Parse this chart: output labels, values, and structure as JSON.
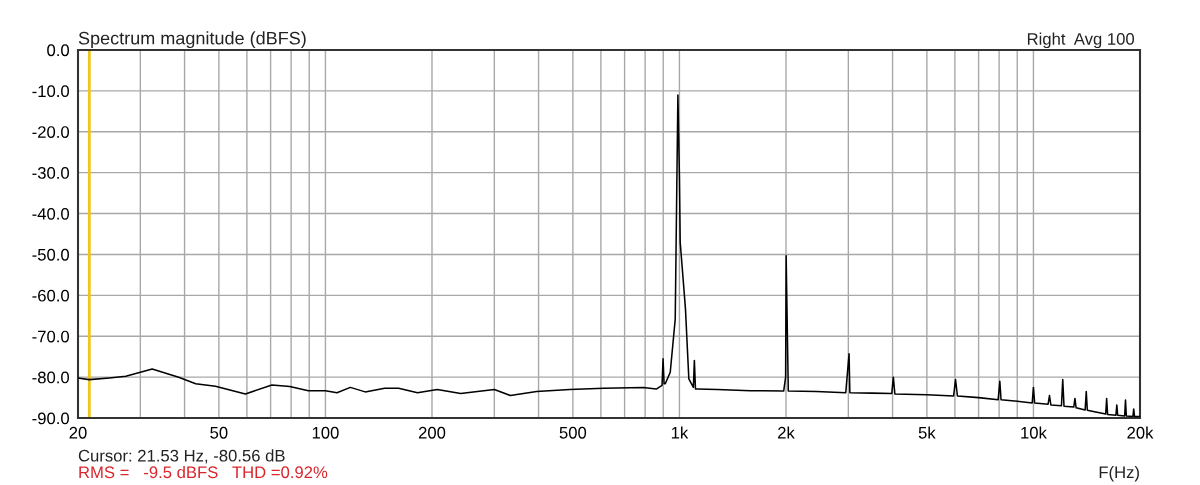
{
  "chart_data": {
    "type": "line",
    "title": "Spectrum magnitude (dBFS)",
    "xlabel": "F(Hz)",
    "annotations": [
      "Right  Avg 100",
      "Cursor: 21.53 Hz, -80.56 dB",
      "RMS =   -9.5 dBFS   THD =0.92%"
    ],
    "log": "x",
    "grid": true,
    "marker": "none",
    "line_style": "solid",
    "xlim": [
      20,
      20000
    ],
    "ylim": [
      -90,
      0
    ],
    "xticks": [
      20,
      {
        "value": 30,
        "label": null
      },
      {
        "value": 40,
        "label": null
      },
      50,
      {
        "value": 60,
        "label": null
      },
      {
        "value": 70,
        "label": null
      },
      {
        "value": 80,
        "label": null
      },
      {
        "value": 90,
        "label": null
      },
      100,
      200,
      {
        "value": 300,
        "label": null
      },
      {
        "value": 400,
        "label": null
      },
      500,
      {
        "value": 600,
        "label": null
      },
      {
        "value": 700,
        "label": null
      },
      {
        "value": 800,
        "label": null
      },
      {
        "value": 900,
        "label": null
      },
      {
        "value": 1000,
        "label": "1k"
      },
      {
        "value": 2000,
        "label": "2k"
      },
      {
        "value": 3000,
        "label": null
      },
      {
        "value": 4000,
        "label": null
      },
      {
        "value": 5000,
        "label": "5k"
      },
      {
        "value": 6000,
        "label": null
      },
      {
        "value": 7000,
        "label": null
      },
      {
        "value": 8000,
        "label": null
      },
      {
        "value": 9000,
        "label": null
      },
      {
        "value": 10000,
        "label": "10k"
      },
      {
        "value": 20000,
        "label": "20k"
      }
    ],
    "yticks": [
      {
        "value": 0,
        "label": "0.0"
      },
      {
        "value": -10,
        "label": "-10.0"
      },
      {
        "value": -20,
        "label": "-20.0"
      },
      {
        "value": -30,
        "label": "-30.0"
      },
      {
        "value": -40,
        "label": "-40.0"
      },
      {
        "value": -50,
        "label": "-50.0"
      },
      {
        "value": -60,
        "label": "-60.0"
      },
      {
        "value": -70,
        "label": "-70.0"
      },
      {
        "value": -80,
        "label": "-80.0"
      },
      {
        "value": -90,
        "label": "-90.0"
      }
    ],
    "ref_lines": [
      {
        "axis": "x",
        "value": 21.53,
        "color": "#f0c419"
      }
    ],
    "series": [
      {
        "color": "#000000",
        "x": [
          20,
          21.5,
          24.5,
          27.3,
          32.4,
          38.5,
          43,
          48.9,
          59.4,
          70.6,
          79.3,
          89.5,
          100,
          107.8,
          117.6,
          129.5,
          147,
          161,
          182,
          207,
          241,
          300,
          333,
          395,
          490,
          611,
          790,
          860,
          893,
          899,
          905,
          912,
          942,
          973,
          990,
          1000,
          1005,
          1040,
          1063,
          1095,
          1102,
          1110,
          1122,
          1278,
          1587,
          1970,
          1995,
          2002,
          2008,
          2030,
          2437,
          2950,
          3014,
          3030,
          3500,
          3980,
          4020,
          4060,
          5000,
          5950,
          6025,
          6100,
          7000,
          7950,
          8036,
          8100,
          9000,
          9920,
          10000,
          10080,
          11000,
          11100,
          11200,
          12000,
          12100,
          12200,
          13000,
          13100,
          13200,
          14000,
          14100,
          14200,
          15000,
          16000,
          16100,
          16200,
          17100,
          17200,
          17300,
          18100,
          18200,
          18300,
          19100,
          19200,
          19300,
          20000
        ],
        "values": [
          -80.2,
          -80.6,
          -80.2,
          -79.8,
          -78.0,
          -80.0,
          -81.6,
          -82.2,
          -84.1,
          -81.9,
          -82.3,
          -83.3,
          -83.3,
          -83.8,
          -82.5,
          -83.6,
          -82.7,
          -82.7,
          -83.8,
          -83.0,
          -84.0,
          -83.0,
          -84.5,
          -83.5,
          -83.0,
          -82.7,
          -82.5,
          -82.9,
          -82.0,
          -75.5,
          -81.6,
          -81.6,
          -78.8,
          -65.8,
          -11,
          -30.8,
          -47,
          -63.3,
          -80.4,
          -82.5,
          -75.9,
          -82.9,
          -82.9,
          -83.0,
          -83.3,
          -83.4,
          -80.0,
          -50.3,
          -57.6,
          -83.4,
          -83.5,
          -83.8,
          -74.3,
          -83.8,
          -83.9,
          -84.0,
          -80.0,
          -84.1,
          -84.3,
          -84.6,
          -80.6,
          -84.6,
          -85.0,
          -85.5,
          -81.0,
          -85.5,
          -85.9,
          -86.3,
          -82.5,
          -86.3,
          -86.6,
          -84.5,
          -86.8,
          -87.0,
          -80.6,
          -87.1,
          -87.3,
          -85.2,
          -87.5,
          -88.0,
          -83.5,
          -88.1,
          -88.5,
          -89.0,
          -85.2,
          -89.1,
          -89.3,
          -86.8,
          -89.3,
          -89.5,
          -85.6,
          -89.5,
          -89.6,
          -87.8,
          -89.6,
          -89.6
        ]
      }
    ]
  }
}
